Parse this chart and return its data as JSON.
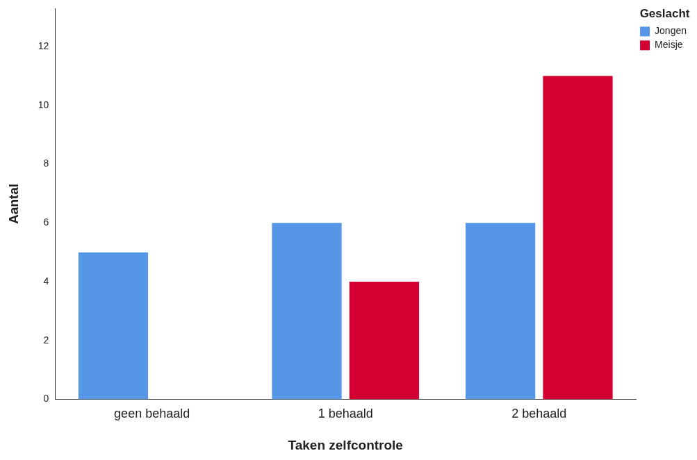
{
  "chart_data": {
    "type": "bar",
    "xlabel": "Taken zelfcontrole",
    "ylabel": "Aantal",
    "legend_title": "Geslacht",
    "categories": [
      "geen behaald",
      "1 behaald",
      "2 behaald"
    ],
    "series": [
      {
        "name": "Jongen",
        "color": "#5596e6",
        "values": [
          5,
          6,
          6
        ]
      },
      {
        "name": "Meisje",
        "color": "#d50032",
        "values": [
          null,
          4,
          11
        ]
      }
    ],
    "ylim": [
      0,
      13.3
    ],
    "yticks": [
      0,
      2,
      4,
      6,
      8,
      10,
      12
    ],
    "grid": false,
    "legend": "top right"
  }
}
